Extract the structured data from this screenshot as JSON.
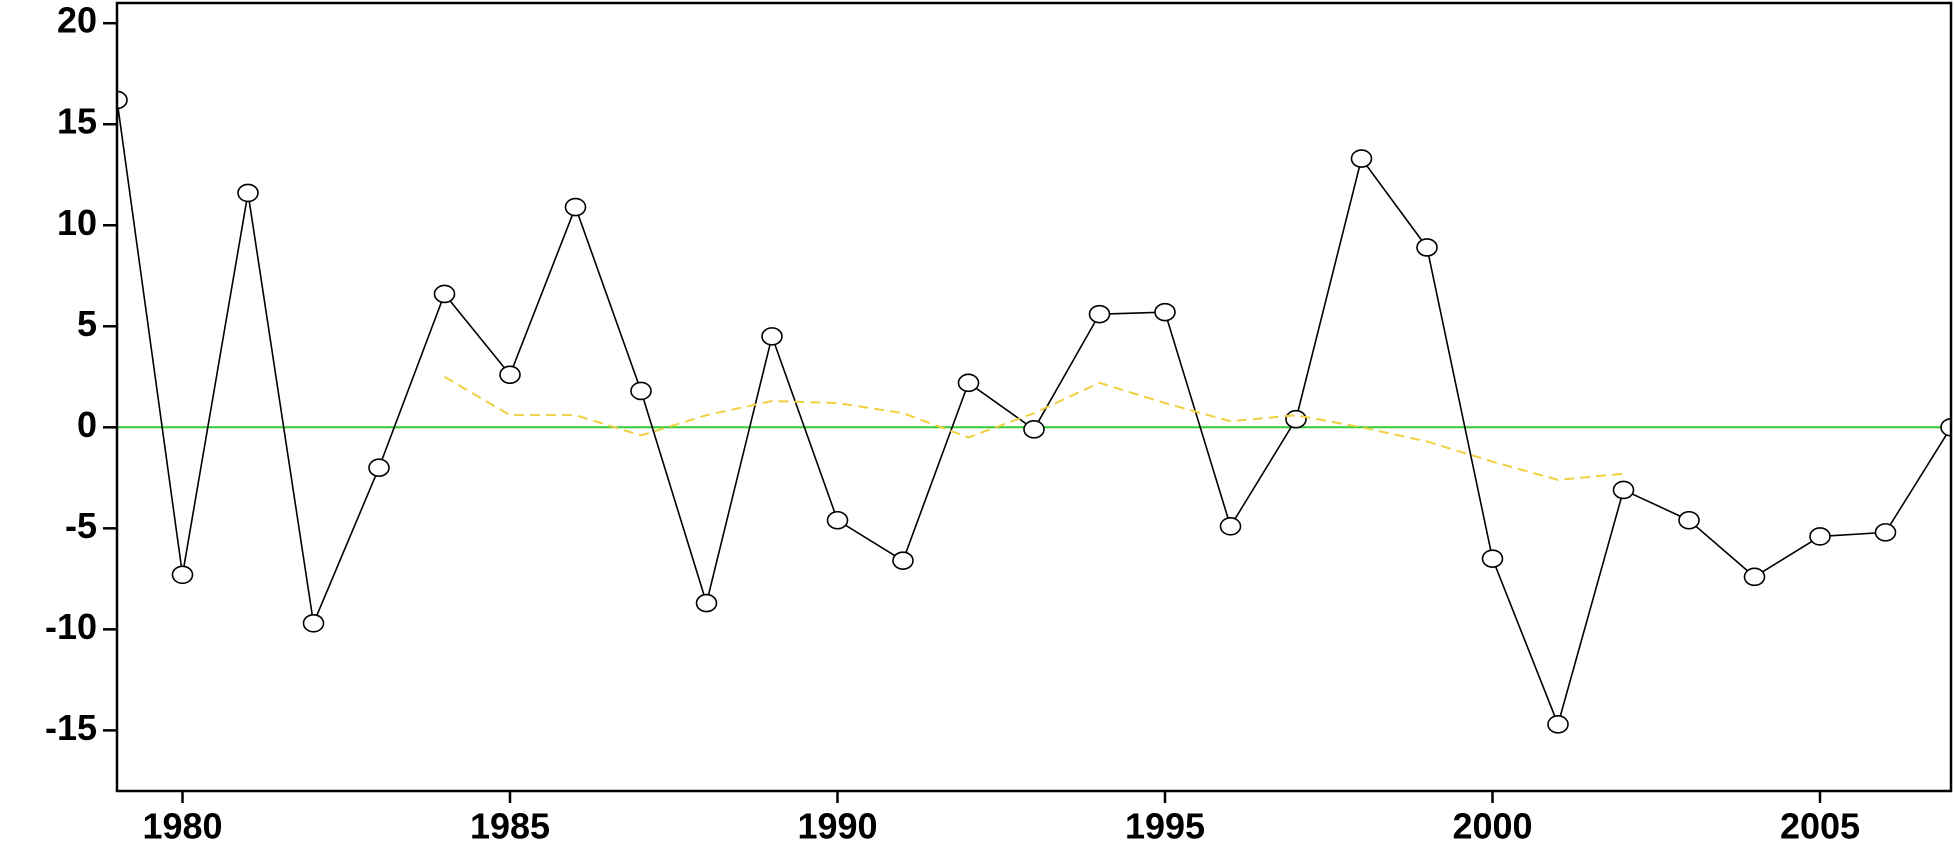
{
  "chart_data": {
    "type": "line",
    "x": [
      1979,
      1980,
      1981,
      1982,
      1983,
      1984,
      1985,
      1986,
      1987,
      1988,
      1989,
      1990,
      1991,
      1992,
      1993,
      1994,
      1995,
      1996,
      1997,
      1998,
      1999,
      2000,
      2001,
      2002,
      2003,
      2004,
      2005,
      2006,
      2007
    ],
    "series": [
      {
        "color": "#000000",
        "markers": true,
        "dashed": false,
        "values": [
          16.2,
          -7.3,
          11.6,
          -9.7,
          -2.0,
          6.6,
          2.6,
          10.9,
          1.8,
          -8.7,
          4.5,
          -4.6,
          -6.6,
          2.2,
          -0.1,
          5.6,
          5.7,
          -4.9,
          0.4,
          13.3,
          8.9,
          -6.5,
          -14.7,
          -3.1,
          -4.6,
          -7.4,
          -5.4,
          -5.2,
          0.0
        ]
      },
      {
        "color": "#f0d040",
        "markers": false,
        "dashed": true,
        "values": [
          null,
          null,
          null,
          null,
          null,
          2.5,
          0.6,
          0.6,
          -0.4,
          0.6,
          1.3,
          1.2,
          0.7,
          -0.5,
          0.7,
          2.2,
          1.2,
          0.3,
          0.6,
          0.0,
          -0.7,
          -1.7,
          -2.6,
          -2.3,
          null,
          null,
          null,
          null,
          null
        ]
      }
    ],
    "hline": 0,
    "hline_color": "#33cc33",
    "xlim": [
      1979,
      2007
    ],
    "xticks": [
      1980,
      1985,
      1990,
      1995,
      2000,
      2005
    ],
    "ylim": [
      -18,
      21
    ],
    "yticks": [
      -15,
      -10,
      -5,
      0,
      5,
      10,
      15,
      20
    ]
  }
}
